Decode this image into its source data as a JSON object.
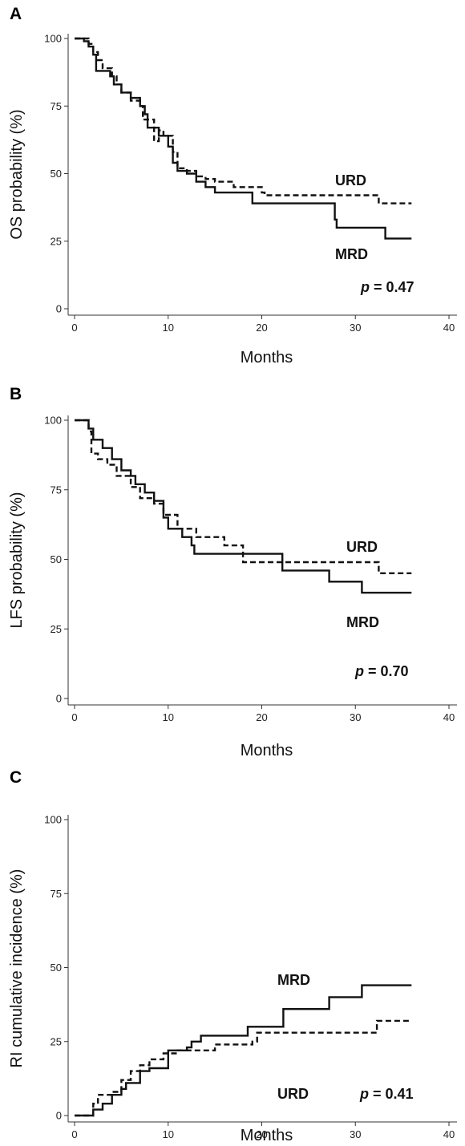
{
  "chart_data": [
    {
      "type": "line",
      "panel": "A",
      "xlabel": "Months",
      "ylabel": "OS probability (%)",
      "xlim": [
        0,
        40
      ],
      "ylim": [
        0,
        100
      ],
      "xticks": [
        0,
        10,
        20,
        30,
        40
      ],
      "yticks": [
        0,
        25,
        50,
        75,
        100
      ],
      "p_label": "p =",
      "p_value": "0.47",
      "series": [
        {
          "name": "MRD",
          "style": "solid",
          "points": [
            [
              0,
              100
            ],
            [
              1,
              99
            ],
            [
              1.5,
              97
            ],
            [
              2,
              94
            ],
            [
              2.3,
              88
            ],
            [
              3,
              88
            ],
            [
              3.8,
              86
            ],
            [
              4.2,
              83
            ],
            [
              5,
              80
            ],
            [
              6,
              78
            ],
            [
              7,
              75
            ],
            [
              7.5,
              72
            ],
            [
              7.8,
              67
            ],
            [
              9,
              64
            ],
            [
              10,
              60
            ],
            [
              10.5,
              54
            ],
            [
              11,
              51
            ],
            [
              12,
              50
            ],
            [
              13,
              47
            ],
            [
              14,
              45
            ],
            [
              15,
              43
            ],
            [
              17,
              43
            ],
            [
              19,
              39
            ],
            [
              27.5,
              39
            ],
            [
              27.8,
              33
            ],
            [
              28,
              30
            ],
            [
              33,
              30
            ],
            [
              33.2,
              26
            ],
            [
              36,
              26
            ]
          ]
        },
        {
          "name": "URD",
          "style": "dashed",
          "points": [
            [
              0,
              100
            ],
            [
              1.5,
              98
            ],
            [
              2,
              95
            ],
            [
              2.5,
              92
            ],
            [
              3,
              89
            ],
            [
              4,
              86
            ],
            [
              4.5,
              83
            ],
            [
              5,
              80
            ],
            [
              6,
              77
            ],
            [
              7,
              75
            ],
            [
              7.3,
              70
            ],
            [
              8.5,
              62
            ],
            [
              9,
              66
            ],
            [
              9.5,
              64
            ],
            [
              10.5,
              58
            ],
            [
              11,
              52
            ],
            [
              12,
              51
            ],
            [
              13,
              49
            ],
            [
              14,
              48
            ],
            [
              15,
              47
            ],
            [
              17,
              45
            ],
            [
              20,
              43
            ],
            [
              20.3,
              42
            ],
            [
              32,
              42
            ],
            [
              32.5,
              39
            ],
            [
              36,
              39
            ]
          ]
        }
      ],
      "labels": {
        "urd": "URD",
        "mrd": "MRD"
      }
    },
    {
      "type": "line",
      "panel": "B",
      "xlabel": "Months",
      "ylabel": "LFS probability (%)",
      "xlim": [
        0,
        40
      ],
      "ylim": [
        0,
        100
      ],
      "xticks": [
        0,
        10,
        20,
        30,
        40
      ],
      "yticks": [
        0,
        25,
        50,
        75,
        100
      ],
      "p_label": "p =",
      "p_value": "0.70",
      "series": [
        {
          "name": "MRD",
          "style": "solid",
          "points": [
            [
              0,
              100
            ],
            [
              1,
              100
            ],
            [
              1.5,
              97
            ],
            [
              2,
              93
            ],
            [
              3,
              90
            ],
            [
              4,
              86
            ],
            [
              5,
              82
            ],
            [
              6,
              80
            ],
            [
              6.5,
              77
            ],
            [
              7.5,
              74
            ],
            [
              8.5,
              71
            ],
            [
              9.5,
              65
            ],
            [
              10,
              61
            ],
            [
              11,
              61
            ],
            [
              11.5,
              58
            ],
            [
              12.5,
              55
            ],
            [
              12.8,
              52
            ],
            [
              22,
              52
            ],
            [
              22.2,
              46
            ],
            [
              27,
              46
            ],
            [
              27.2,
              42
            ],
            [
              30.5,
              42
            ],
            [
              30.7,
              38
            ],
            [
              36,
              38
            ]
          ]
        },
        {
          "name": "URD",
          "style": "dashed",
          "points": [
            [
              0,
              100
            ],
            [
              1.5,
              96
            ],
            [
              1.8,
              88
            ],
            [
              2.5,
              86
            ],
            [
              3.5,
              84
            ],
            [
              4.5,
              80
            ],
            [
              6,
              76
            ],
            [
              7,
              72
            ],
            [
              8.5,
              70
            ],
            [
              9.5,
              66
            ],
            [
              11,
              61
            ],
            [
              13,
              58
            ],
            [
              16,
              55
            ],
            [
              18,
              49
            ],
            [
              20,
              49
            ],
            [
              32,
              49
            ],
            [
              32.5,
              45
            ],
            [
              36,
              45
            ]
          ]
        }
      ],
      "labels": {
        "urd": "URD",
        "mrd": "MRD"
      }
    },
    {
      "type": "line",
      "panel": "C",
      "xlabel": "Months",
      "ylabel": "RI cumulative incidence (%)",
      "xlim": [
        0,
        40
      ],
      "ylim": [
        0,
        100
      ],
      "xticks": [
        0,
        10,
        20,
        30,
        40
      ],
      "yticks": [
        0,
        25,
        50,
        75,
        100
      ],
      "p_label": "p =",
      "p_value": "0.41",
      "series": [
        {
          "name": "MRD",
          "style": "solid",
          "points": [
            [
              0,
              0
            ],
            [
              1.8,
              0
            ],
            [
              2,
              2
            ],
            [
              3,
              4
            ],
            [
              4,
              7
            ],
            [
              5,
              9
            ],
            [
              5.5,
              11
            ],
            [
              7,
              15
            ],
            [
              8,
              16
            ],
            [
              10,
              22
            ],
            [
              12,
              23
            ],
            [
              12.5,
              25
            ],
            [
              13.5,
              27
            ],
            [
              18,
              27
            ],
            [
              18.5,
              30
            ],
            [
              22,
              30
            ],
            [
              22.3,
              36
            ],
            [
              27,
              36
            ],
            [
              27.2,
              40
            ],
            [
              30.5,
              40
            ],
            [
              30.7,
              44
            ],
            [
              36,
              44
            ]
          ]
        },
        {
          "name": "URD",
          "style": "dashed",
          "points": [
            [
              0,
              0
            ],
            [
              1.8,
              0
            ],
            [
              2,
              4
            ],
            [
              2.5,
              7
            ],
            [
              4,
              8
            ],
            [
              5,
              12
            ],
            [
              6,
              15
            ],
            [
              7,
              17
            ],
            [
              8,
              19
            ],
            [
              9.5,
              21
            ],
            [
              11,
              22
            ],
            [
              13,
              22
            ],
            [
              15,
              24
            ],
            [
              19,
              25
            ],
            [
              19.5,
              28
            ],
            [
              32,
              28
            ],
            [
              32.3,
              32
            ],
            [
              36,
              32
            ]
          ]
        }
      ],
      "labels": {
        "urd": "URD",
        "mrd": "MRD"
      }
    }
  ]
}
